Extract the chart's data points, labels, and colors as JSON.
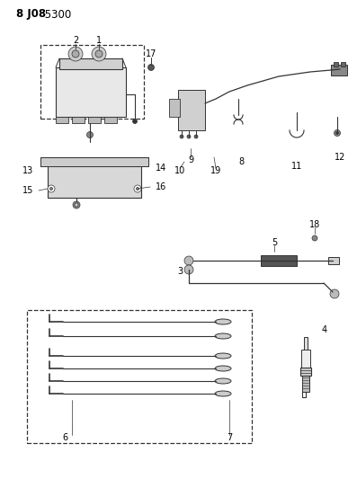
{
  "title_bold": "8 J08",
  "title_normal": " 5300",
  "bg_color": "#ffffff",
  "fig_width": 3.97,
  "fig_height": 5.33,
  "dpi": 100,
  "line_color": "#333333"
}
